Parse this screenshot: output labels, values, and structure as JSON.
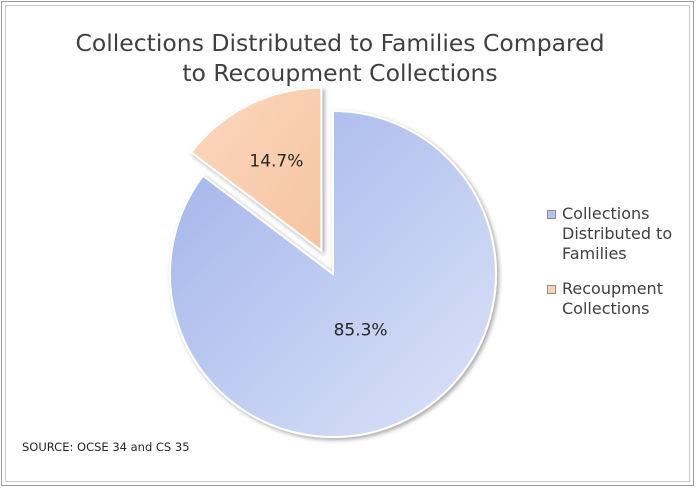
{
  "chart_data": {
    "type": "pie",
    "title": "Collections Distributed to Families Compared to Recoupment Collections",
    "title_lines": [
      "Collections Distributed to Families Compared",
      "to Recoupment Collections"
    ],
    "series": [
      {
        "name": "Collections Distributed to Families",
        "value": 85.3,
        "label": "85.3%",
        "color": "#b3c2ee",
        "exploded": false
      },
      {
        "name": "Recoupment Collections",
        "value": 14.7,
        "label": "14.7%",
        "color": "#fbd2b4",
        "exploded": true
      }
    ],
    "legend": {
      "position": "right",
      "items": [
        {
          "lines": [
            "Collections",
            "Distributed to",
            "Families"
          ],
          "color": "#b3c2ee"
        },
        {
          "lines": [
            "Recoupment",
            "Collections"
          ],
          "color": "#fbd2b4"
        }
      ]
    },
    "source": "SOURCE: OCSE 34 and CS 35"
  }
}
